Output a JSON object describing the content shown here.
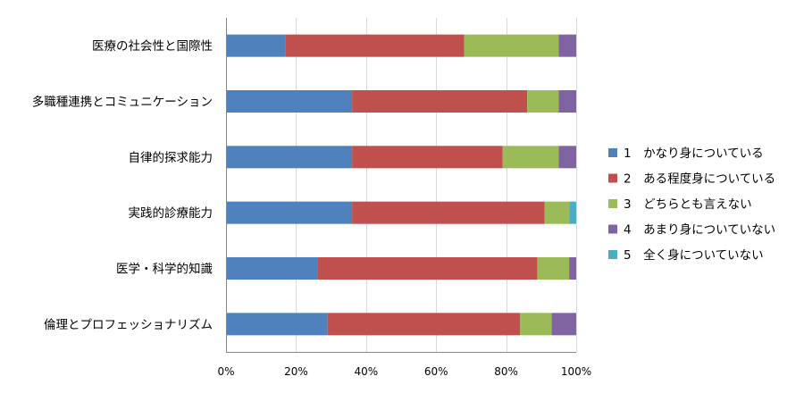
{
  "chart_data": {
    "type": "bar",
    "orientation": "horizontal",
    "stacked": "percent",
    "categories": [
      "医療の社会性と国際性",
      "多職種連携とコミュニケーション",
      "自律的探求能力",
      "実践的診療能力",
      "医学・科学的知識",
      "倫理とプロフェッショナリズム"
    ],
    "series": [
      {
        "name": "1　かなり身についている",
        "color": "#4F81BD",
        "values": [
          17,
          36,
          36,
          36,
          26,
          29
        ]
      },
      {
        "name": "2　ある程度身についている",
        "color": "#C0504D",
        "values": [
          51,
          50,
          43,
          55,
          62,
          55
        ]
      },
      {
        "name": "3　どちらとも言えない",
        "color": "#9BBB59",
        "values": [
          27,
          9,
          16,
          7,
          9,
          9
        ]
      },
      {
        "name": "4　あまり身についていない",
        "color": "#8064A2",
        "values": [
          5,
          5,
          5,
          0,
          2,
          7
        ]
      },
      {
        "name": "5　全く身についていない",
        "color": "#4BACC6",
        "values": [
          0,
          0,
          0,
          2,
          0,
          0
        ]
      }
    ],
    "xlim": [
      0,
      100
    ],
    "xticks": [
      "0%",
      "20%",
      "40%",
      "60%",
      "80%",
      "100%"
    ],
    "grid": true,
    "legend_position": "right",
    "title": "",
    "xlabel": "",
    "ylabel": ""
  }
}
